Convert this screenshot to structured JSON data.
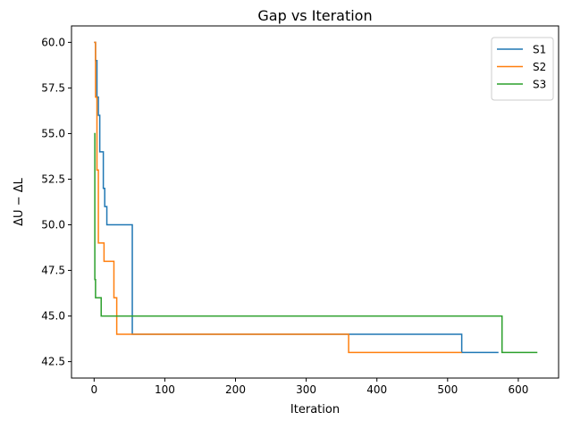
{
  "chart_data": {
    "type": "line",
    "title": "Gap vs Iteration",
    "xlabel": "Iteration",
    "ylabel": "ΔU − ΔL",
    "xlim": [
      -32,
      657
    ],
    "ylim": [
      41.6,
      60.9
    ],
    "xticks": [
      0,
      100,
      200,
      300,
      400,
      500,
      600
    ],
    "xtick_labels": [
      "0",
      "100",
      "200",
      "300",
      "400",
      "500",
      "600"
    ],
    "yticks": [
      42.5,
      45.0,
      47.5,
      50.0,
      52.5,
      55.0,
      57.5,
      60.0
    ],
    "ytick_labels": [
      "42.5",
      "45.0",
      "47.5",
      "50.0",
      "52.5",
      "55.0",
      "57.5",
      "60.0"
    ],
    "grid": false,
    "legend_position": "top-right",
    "series": [
      {
        "name": "S1",
        "color": "#1f77b4",
        "x": [
          0,
          2,
          2,
          4,
          4,
          6,
          6,
          8,
          8,
          13,
          13,
          15,
          15,
          18,
          18,
          22,
          22,
          54,
          54,
          520,
          520,
          572
        ],
        "y": [
          60,
          60,
          59,
          59,
          57,
          57,
          56,
          56,
          54,
          54,
          52,
          52,
          51,
          51,
          50,
          50,
          50,
          50,
          44,
          44,
          43,
          43
        ]
      },
      {
        "name": "S2",
        "color": "#ff7f0e",
        "x": [
          0,
          2,
          2,
          4,
          4,
          6,
          6,
          14,
          14,
          28,
          28,
          32,
          32,
          360,
          360,
          520
        ],
        "y": [
          60,
          60,
          57,
          57,
          53,
          53,
          49,
          49,
          48,
          48,
          46,
          46,
          44,
          44,
          43,
          43
        ]
      },
      {
        "name": "S3",
        "color": "#2ca02c",
        "x": [
          0,
          1,
          1,
          2,
          2,
          10,
          10,
          577,
          577,
          627
        ],
        "y": [
          55,
          55,
          47,
          47,
          46,
          46,
          45,
          45,
          43,
          43
        ]
      }
    ]
  }
}
